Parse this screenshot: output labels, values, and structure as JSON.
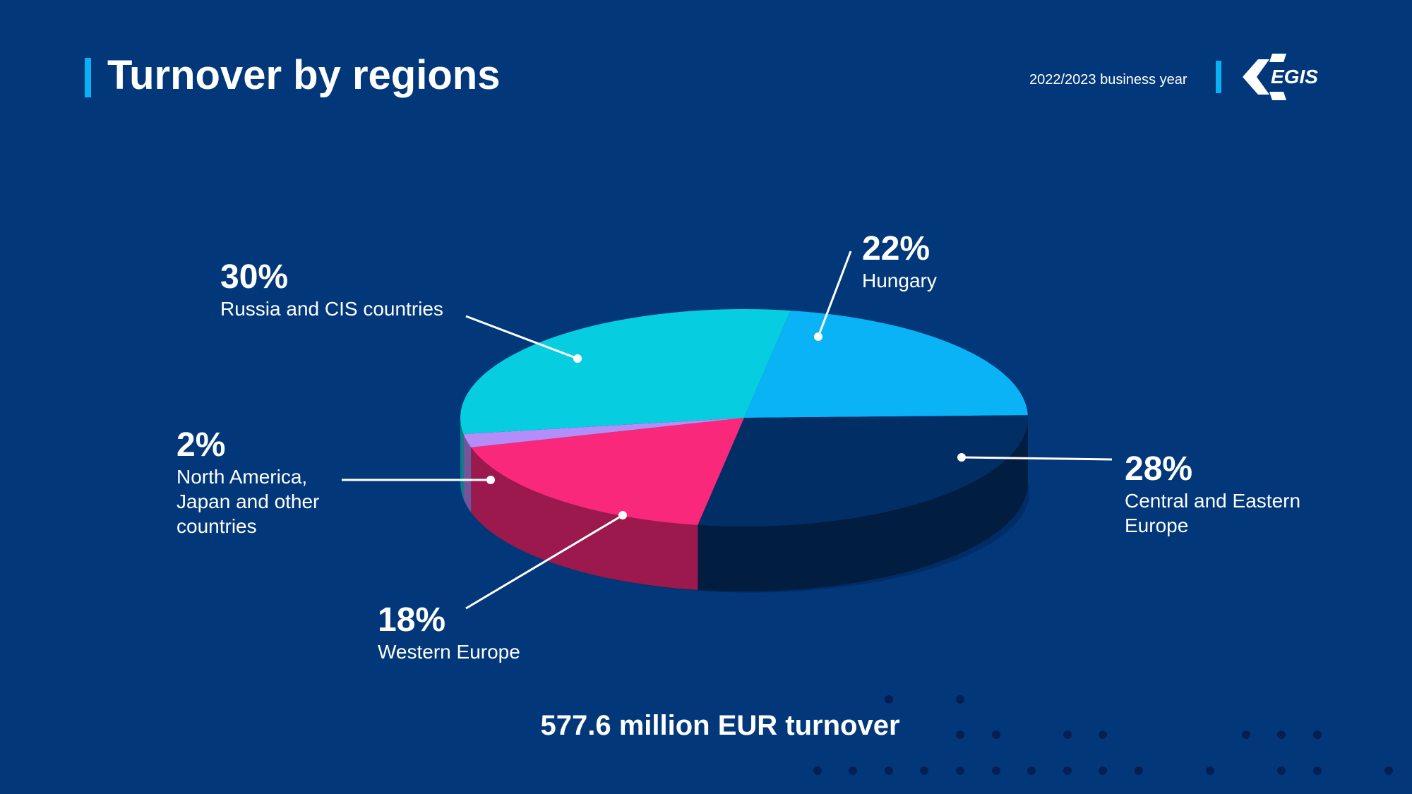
{
  "header": {
    "title": "Turnover by regions",
    "period": "2022/2023 business year",
    "logo_text": "EGIS"
  },
  "chart_data": {
    "type": "pie",
    "title": "Turnover by regions",
    "unit": "%",
    "slices": [
      {
        "label": "Hungary",
        "value": 22,
        "value_label": "22%",
        "color": "#0ab3f5"
      },
      {
        "label": "Central and Eastern Europe",
        "value": 28,
        "value_label": "28%",
        "color": "#022e66"
      },
      {
        "label": "Western Europe",
        "value": 18,
        "value_label": "18%",
        "color": "#fa287a"
      },
      {
        "label": "North America, Japan and other countries",
        "value": 2,
        "value_label": "2%",
        "color": "#b58df8"
      },
      {
        "label": "Russia and CIS countries",
        "value": 30,
        "value_label": "30%",
        "color": "#07cde0"
      }
    ],
    "legend": "callout labels"
  },
  "footer": {
    "total": "577.6 million EUR  turnover"
  },
  "colors": {
    "background": "#02387a",
    "accent": "#0ab0f4"
  }
}
